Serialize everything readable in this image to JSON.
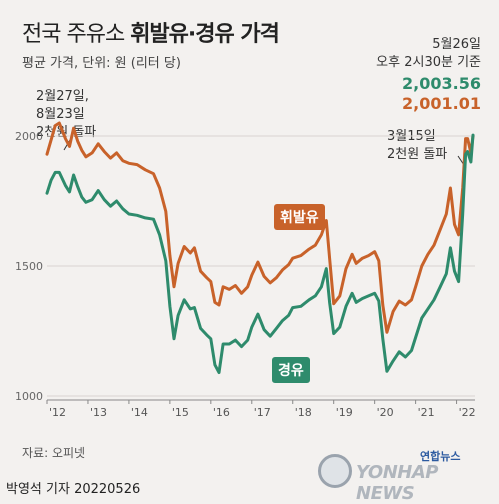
{
  "title_plain": "전국 주유소 ",
  "title_bold": "휘발유·경유 가격",
  "subtitle": "평균 가격, 단위: 원 (리터 당)",
  "date_note": [
    "5월26일",
    "오후 2시30분 기준"
  ],
  "value_diesel": "2,003.56",
  "value_gasoline": "2,001.01",
  "annotation_left": [
    "2월27일,",
    "8월23일",
    "2천원 돌파"
  ],
  "annotation_right": [
    "3월15일",
    "2천원 돌파"
  ],
  "source": "자료: 오피넷",
  "byline": "박영석 기자  20220526",
  "logo_kr": "연합뉴스",
  "logo_en": "YONHAP NEWS",
  "colors": {
    "gasoline": "#c8622a",
    "diesel": "#2e8b6c"
  },
  "chart_data": {
    "type": "line",
    "title": "",
    "xlabel": "",
    "ylabel": "",
    "xlim": [
      2012.0,
      2022.45
    ],
    "ylim": [
      1000,
      2100
    ],
    "yticks": [
      1000,
      1500,
      2000
    ],
    "xticks": [
      {
        "value": 2012,
        "label": "'12"
      },
      {
        "value": 2013,
        "label": "'13"
      },
      {
        "value": 2014,
        "label": "'14"
      },
      {
        "value": 2015,
        "label": "'15"
      },
      {
        "value": 2016,
        "label": "'16"
      },
      {
        "value": 2017,
        "label": "'17"
      },
      {
        "value": 2018,
        "label": "'18"
      },
      {
        "value": 2019,
        "label": "'19"
      },
      {
        "value": 2020,
        "label": "'20"
      },
      {
        "value": 2021,
        "label": "'21"
      },
      {
        "value": 2022,
        "label": "'22"
      }
    ],
    "grid": "horizontal",
    "series": [
      {
        "name": "휘발유",
        "points": [
          [
            2012.0,
            1930
          ],
          [
            2012.1,
            1985
          ],
          [
            2012.2,
            2040
          ],
          [
            2012.3,
            2050
          ],
          [
            2012.45,
            1990
          ],
          [
            2012.55,
            1960
          ],
          [
            2012.65,
            2030
          ],
          [
            2012.75,
            1980
          ],
          [
            2012.85,
            1945
          ],
          [
            2012.95,
            1920
          ],
          [
            2013.1,
            1935
          ],
          [
            2013.25,
            1970
          ],
          [
            2013.4,
            1940
          ],
          [
            2013.55,
            1915
          ],
          [
            2013.7,
            1935
          ],
          [
            2013.85,
            1905
          ],
          [
            2014.0,
            1895
          ],
          [
            2014.2,
            1890
          ],
          [
            2014.4,
            1870
          ],
          [
            2014.6,
            1855
          ],
          [
            2014.75,
            1800
          ],
          [
            2014.9,
            1710
          ],
          [
            2015.0,
            1540
          ],
          [
            2015.1,
            1420
          ],
          [
            2015.2,
            1510
          ],
          [
            2015.35,
            1575
          ],
          [
            2015.5,
            1550
          ],
          [
            2015.6,
            1570
          ],
          [
            2015.75,
            1480
          ],
          [
            2015.9,
            1455
          ],
          [
            2016.0,
            1440
          ],
          [
            2016.1,
            1360
          ],
          [
            2016.2,
            1350
          ],
          [
            2016.3,
            1420
          ],
          [
            2016.45,
            1410
          ],
          [
            2016.6,
            1425
          ],
          [
            2016.75,
            1395
          ],
          [
            2016.9,
            1420
          ],
          [
            2017.0,
            1465
          ],
          [
            2017.15,
            1515
          ],
          [
            2017.3,
            1460
          ],
          [
            2017.45,
            1435
          ],
          [
            2017.6,
            1455
          ],
          [
            2017.75,
            1485
          ],
          [
            2017.9,
            1505
          ],
          [
            2018.0,
            1530
          ],
          [
            2018.2,
            1540
          ],
          [
            2018.4,
            1565
          ],
          [
            2018.55,
            1580
          ],
          [
            2018.7,
            1620
          ],
          [
            2018.82,
            1675
          ],
          [
            2018.9,
            1530
          ],
          [
            2019.0,
            1355
          ],
          [
            2019.15,
            1385
          ],
          [
            2019.3,
            1490
          ],
          [
            2019.45,
            1545
          ],
          [
            2019.55,
            1510
          ],
          [
            2019.7,
            1530
          ],
          [
            2019.85,
            1540
          ],
          [
            2020.0,
            1555
          ],
          [
            2020.1,
            1520
          ],
          [
            2020.2,
            1350
          ],
          [
            2020.3,
            1245
          ],
          [
            2020.45,
            1325
          ],
          [
            2020.6,
            1365
          ],
          [
            2020.75,
            1350
          ],
          [
            2020.9,
            1370
          ],
          [
            2021.0,
            1420
          ],
          [
            2021.15,
            1500
          ],
          [
            2021.3,
            1545
          ],
          [
            2021.45,
            1580
          ],
          [
            2021.6,
            1640
          ],
          [
            2021.75,
            1700
          ],
          [
            2021.85,
            1800
          ],
          [
            2021.95,
            1660
          ],
          [
            2022.05,
            1620
          ],
          [
            2022.15,
            1800
          ],
          [
            2022.22,
            1990
          ],
          [
            2022.27,
            1990
          ],
          [
            2022.35,
            1935
          ],
          [
            2022.4,
            2001
          ]
        ]
      },
      {
        "name": "경유",
        "points": [
          [
            2012.0,
            1780
          ],
          [
            2012.1,
            1830
          ],
          [
            2012.2,
            1860
          ],
          [
            2012.3,
            1860
          ],
          [
            2012.45,
            1810
          ],
          [
            2012.55,
            1785
          ],
          [
            2012.65,
            1850
          ],
          [
            2012.75,
            1805
          ],
          [
            2012.85,
            1765
          ],
          [
            2012.95,
            1745
          ],
          [
            2013.1,
            1755
          ],
          [
            2013.25,
            1790
          ],
          [
            2013.4,
            1755
          ],
          [
            2013.55,
            1730
          ],
          [
            2013.7,
            1750
          ],
          [
            2013.85,
            1720
          ],
          [
            2014.0,
            1700
          ],
          [
            2014.2,
            1695
          ],
          [
            2014.4,
            1685
          ],
          [
            2014.6,
            1680
          ],
          [
            2014.75,
            1620
          ],
          [
            2014.9,
            1520
          ],
          [
            2015.0,
            1345
          ],
          [
            2015.1,
            1220
          ],
          [
            2015.2,
            1310
          ],
          [
            2015.35,
            1370
          ],
          [
            2015.5,
            1335
          ],
          [
            2015.6,
            1340
          ],
          [
            2015.75,
            1260
          ],
          [
            2015.9,
            1235
          ],
          [
            2016.0,
            1220
          ],
          [
            2016.1,
            1120
          ],
          [
            2016.2,
            1090
          ],
          [
            2016.3,
            1200
          ],
          [
            2016.45,
            1200
          ],
          [
            2016.6,
            1215
          ],
          [
            2016.75,
            1190
          ],
          [
            2016.9,
            1215
          ],
          [
            2017.0,
            1265
          ],
          [
            2017.15,
            1315
          ],
          [
            2017.3,
            1255
          ],
          [
            2017.45,
            1230
          ],
          [
            2017.6,
            1260
          ],
          [
            2017.75,
            1290
          ],
          [
            2017.9,
            1310
          ],
          [
            2018.0,
            1340
          ],
          [
            2018.2,
            1345
          ],
          [
            2018.4,
            1370
          ],
          [
            2018.55,
            1385
          ],
          [
            2018.7,
            1420
          ],
          [
            2018.82,
            1490
          ],
          [
            2018.9,
            1360
          ],
          [
            2019.0,
            1240
          ],
          [
            2019.15,
            1265
          ],
          [
            2019.3,
            1345
          ],
          [
            2019.45,
            1395
          ],
          [
            2019.55,
            1360
          ],
          [
            2019.7,
            1375
          ],
          [
            2019.85,
            1385
          ],
          [
            2020.0,
            1395
          ],
          [
            2020.1,
            1365
          ],
          [
            2020.2,
            1220
          ],
          [
            2020.3,
            1095
          ],
          [
            2020.45,
            1135
          ],
          [
            2020.6,
            1170
          ],
          [
            2020.75,
            1150
          ],
          [
            2020.9,
            1175
          ],
          [
            2021.0,
            1225
          ],
          [
            2021.15,
            1300
          ],
          [
            2021.3,
            1335
          ],
          [
            2021.45,
            1370
          ],
          [
            2021.6,
            1420
          ],
          [
            2021.75,
            1470
          ],
          [
            2021.85,
            1570
          ],
          [
            2021.95,
            1480
          ],
          [
            2022.05,
            1440
          ],
          [
            2022.15,
            1700
          ],
          [
            2022.22,
            1930
          ],
          [
            2022.27,
            1940
          ],
          [
            2022.35,
            1900
          ],
          [
            2022.4,
            2003.56
          ]
        ]
      }
    ]
  }
}
